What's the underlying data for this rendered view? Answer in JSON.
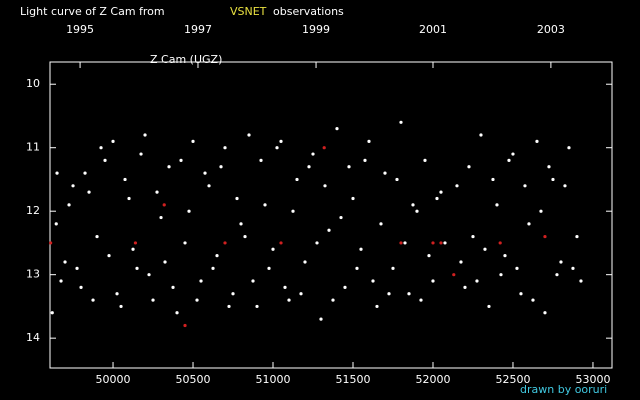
{
  "chart_data": {
    "type": "scatter",
    "title": "Light curve of Z Cam from",
    "title_source": "VSNET",
    "title_suffix": "observations",
    "annotation": "Z Cam (UGZ)",
    "credit": "drawn by ooruri",
    "xlim": [
      49606,
      53119
    ],
    "ylim": [
      14.47,
      9.65
    ],
    "xticks": [
      50000,
      50500,
      51000,
      51500,
      52000,
      52500,
      53000
    ],
    "yticks": [
      10,
      11,
      12,
      13,
      14
    ],
    "x2ticks": [
      {
        "value": 49794,
        "label": "1995"
      },
      {
        "value": 50531,
        "label": "1997"
      },
      {
        "value": 51269,
        "label": "1999"
      },
      {
        "value": 52000,
        "label": "2001"
      },
      {
        "value": 52737,
        "label": "2003"
      }
    ],
    "series": [
      {
        "color": "#ffffff",
        "x": [
          49620,
          49650,
          49700,
          49750,
          49800,
          49850,
          49900,
          49950,
          50000,
          50050,
          50100,
          50150,
          50200,
          50250,
          50300,
          50350,
          50400,
          50450,
          50500,
          50550,
          50600,
          50650,
          50700,
          50750,
          50800,
          50850,
          50900,
          50950,
          51000,
          51050,
          51100,
          51150,
          51200,
          51250,
          51300,
          51350,
          51400,
          51450,
          51500,
          51550,
          51600,
          51650,
          51700,
          51750,
          51800,
          51850,
          51900,
          51950,
          52000,
          52050,
          52150,
          52200,
          52250,
          52300,
          52350,
          52400,
          52450,
          52500,
          52550,
          52600,
          52650,
          52700,
          52750,
          52800,
          52850,
          52900,
          49645,
          49675,
          49725,
          49775,
          49825,
          49875,
          49925,
          49975,
          50025,
          50075,
          50125,
          50175,
          50225,
          50275,
          50325,
          50375,
          50425,
          50475,
          50525,
          50575,
          50625,
          50675,
          50725,
          50775,
          50825,
          50875,
          50925,
          50975,
          51025,
          51075,
          51125,
          51175,
          51225,
          51275,
          51325,
          51375,
          51425,
          51475,
          51525,
          51575,
          51625,
          51675,
          51725,
          51775,
          51825,
          51875,
          51925,
          51975,
          52025,
          52075,
          52175,
          52225,
          52275,
          52325,
          52375,
          52425,
          52475,
          52525,
          52575,
          52625,
          52675,
          52725,
          52775,
          52825,
          52875,
          52925
        ],
        "values": [
          13.6,
          11.4,
          12.8,
          11.6,
          13.2,
          11.7,
          12.4,
          11.2,
          10.9,
          13.5,
          11.8,
          12.9,
          10.8,
          13.4,
          12.1,
          11.3,
          13.6,
          12.5,
          10.9,
          13.1,
          11.6,
          12.7,
          11.0,
          13.3,
          12.2,
          10.8,
          13.5,
          11.9,
          12.6,
          10.9,
          13.4,
          11.5,
          12.8,
          11.1,
          13.7,
          12.3,
          10.7,
          13.2,
          11.8,
          12.6,
          10.9,
          13.5,
          11.4,
          12.9,
          10.6,
          13.3,
          12.0,
          11.2,
          13.1,
          11.7,
          11.6,
          13.2,
          12.4,
          10.8,
          13.5,
          11.9,
          12.7,
          11.1,
          13.3,
          12.2,
          10.9,
          13.6,
          11.5,
          12.8,
          11.0,
          12.4,
          12.2,
          13.1,
          11.9,
          12.9,
          11.4,
          13.4,
          11.0,
          12.7,
          13.3,
          11.5,
          12.6,
          11.1,
          13.0,
          11.7,
          12.8,
          13.2,
          11.2,
          12.0,
          13.4,
          11.4,
          12.9,
          11.3,
          13.5,
          11.8,
          12.4,
          13.1,
          11.2,
          12.9,
          11.0,
          13.2,
          12.0,
          13.3,
          11.3,
          12.5,
          11.6,
          13.4,
          12.1,
          11.3,
          12.9,
          11.2,
          13.1,
          12.2,
          13.3,
          11.5,
          12.5,
          11.9,
          13.4,
          12.7,
          11.8,
          12.5,
          12.8,
          11.3,
          13.1,
          12.6,
          11.5,
          13.0,
          11.2,
          12.9,
          11.6,
          13.4,
          12.0,
          11.3,
          13.0,
          11.6,
          12.9,
          13.1
        ]
      },
      {
        "color": "#d02020",
        "x": [
          49610,
          50140,
          50320,
          50450,
          50700,
          51050,
          51320,
          51800,
          52000,
          52050,
          52130,
          52420,
          52700
        ],
        "values": [
          12.5,
          12.5,
          11.9,
          13.8,
          12.5,
          12.5,
          11.0,
          12.5,
          12.5,
          12.5,
          13.0,
          12.5,
          12.4
        ]
      }
    ]
  }
}
